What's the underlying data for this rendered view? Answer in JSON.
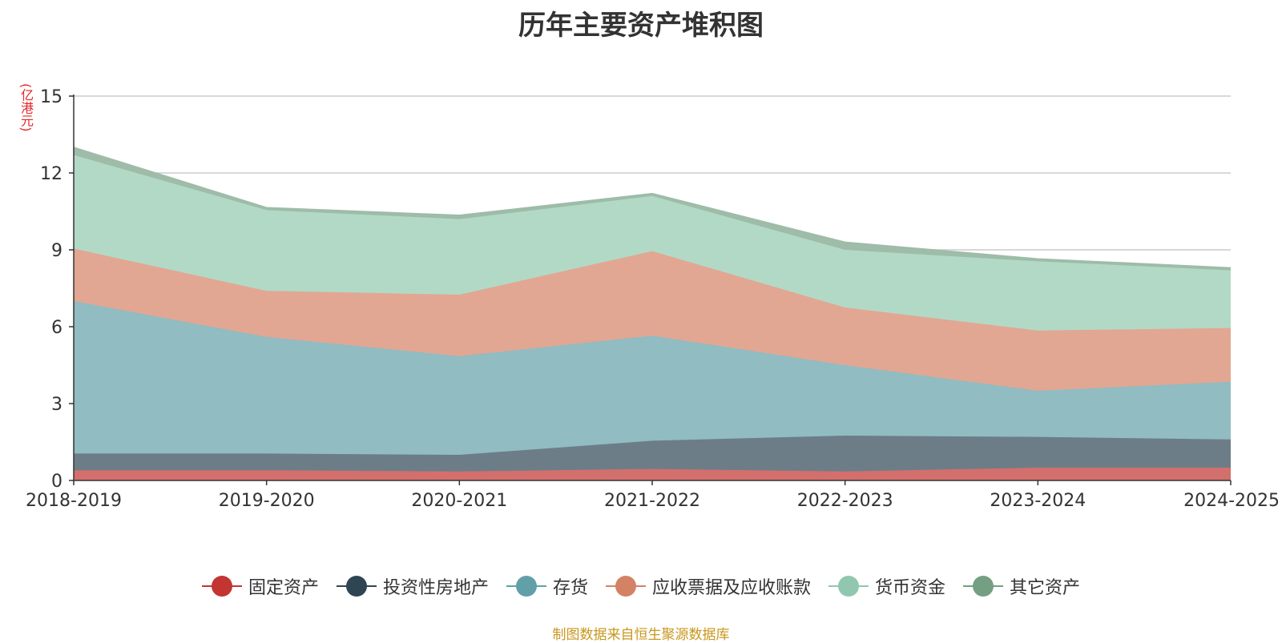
{
  "chart_data": {
    "type": "area",
    "stacked": true,
    "title": "历年主要资产堆积图",
    "unit": "(亿港元)",
    "categories": [
      "2018-2019",
      "2019-2020",
      "2020-2021",
      "2021-2022",
      "2022-2023",
      "2023-2024",
      "2024-2025"
    ],
    "ylim": [
      0,
      15
    ],
    "yticks": [
      "0",
      "3",
      "6",
      "9",
      "12",
      "15"
    ],
    "grid": true,
    "legend_position": "bottom",
    "series": [
      {
        "name": "固定资产",
        "color": "#c23531",
        "fill": "#d36f6c",
        "values": [
          0.4,
          0.4,
          0.35,
          0.45,
          0.35,
          0.5,
          0.5
        ]
      },
      {
        "name": "投资性房地产",
        "color": "#2f4554",
        "fill": "#6d7d88",
        "values": [
          0.65,
          0.65,
          0.65,
          1.1,
          1.4,
          1.2,
          1.1
        ]
      },
      {
        "name": "存货",
        "color": "#61a0a8",
        "fill": "#90bcc2",
        "values": [
          5.95,
          4.55,
          3.85,
          4.1,
          2.75,
          1.8,
          2.25
        ]
      },
      {
        "name": "应收票据及应收账款",
        "color": "#d48265",
        "fill": "#e1a793",
        "values": [
          2.05,
          1.8,
          2.4,
          3.3,
          2.25,
          2.35,
          2.1
        ]
      },
      {
        "name": "货币资金",
        "color": "#91c7ae",
        "fill": "#b2d9c6",
        "values": [
          3.65,
          3.15,
          2.95,
          2.15,
          2.25,
          2.7,
          2.25
        ]
      },
      {
        "name": "其它资产",
        "color": "#749f83",
        "fill": "#9ebca8",
        "values": [
          0.3,
          0.1,
          0.15,
          0.1,
          0.3,
          0.1,
          0.1
        ]
      }
    ]
  },
  "source_note": "制图数据来自恒生聚源数据库"
}
